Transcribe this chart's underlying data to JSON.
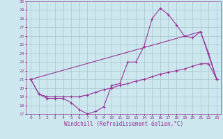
{
  "xlabel": "Windchill (Refroidissement éolien,°C)",
  "bg_color": "#cce8ee",
  "line_color": "#993399",
  "grid_color": "#aac4cc",
  "xlim": [
    -0.5,
    23.5
  ],
  "ylim": [
    17,
    30
  ],
  "yticks": [
    17,
    18,
    19,
    20,
    21,
    22,
    23,
    24,
    25,
    26,
    27,
    28,
    29,
    30
  ],
  "xticks": [
    0,
    1,
    2,
    3,
    4,
    5,
    6,
    7,
    8,
    9,
    10,
    11,
    12,
    13,
    14,
    15,
    16,
    17,
    18,
    19,
    20,
    21,
    22,
    23
  ],
  "line1_x": [
    0,
    1,
    2,
    3,
    4,
    5,
    6,
    7,
    8,
    9,
    10,
    11,
    12,
    13,
    14,
    15,
    16,
    17,
    18,
    19,
    20,
    21,
    22,
    23
  ],
  "line1_y": [
    21,
    19.3,
    18.8,
    18.8,
    18.8,
    18.3,
    17.5,
    17.0,
    17.3,
    17.8,
    20.3,
    20.5,
    23.0,
    23.0,
    24.8,
    28.0,
    29.2,
    28.5,
    27.3,
    26.0,
    25.8,
    26.5,
    24.0,
    21.0
  ],
  "line2_x": [
    0,
    1,
    2,
    3,
    4,
    5,
    6,
    7,
    8,
    9,
    10,
    11,
    12,
    13,
    14,
    15,
    16,
    17,
    18,
    19,
    20,
    21,
    22,
    23
  ],
  "line2_y": [
    21,
    19.3,
    19.0,
    19.0,
    19.0,
    19.0,
    19.0,
    19.2,
    19.5,
    19.8,
    20.0,
    20.3,
    20.5,
    20.8,
    21.0,
    21.3,
    21.6,
    21.8,
    22.0,
    22.2,
    22.5,
    22.8,
    22.8,
    21.0
  ],
  "line3_x": [
    0,
    21,
    23
  ],
  "line3_y": [
    21,
    26.5,
    21.0
  ],
  "marker": "+"
}
